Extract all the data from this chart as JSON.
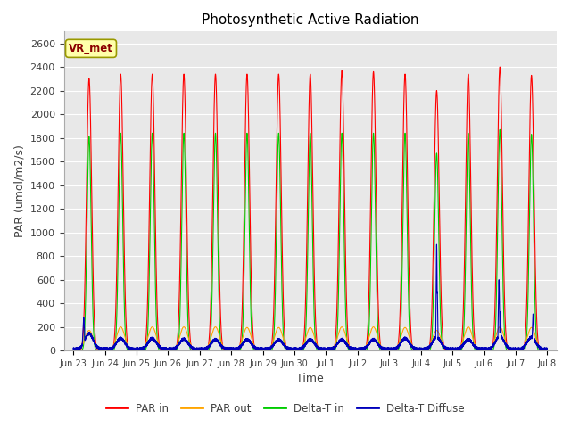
{
  "title": "Photosynthetic Active Radiation",
  "ylabel": "PAR (umol/m2/s)",
  "xlabel": "Time",
  "ylim": [
    0,
    2700
  ],
  "yticks": [
    0,
    200,
    400,
    600,
    800,
    1000,
    1200,
    1400,
    1600,
    1800,
    2000,
    2200,
    2400,
    2600
  ],
  "xtick_labels": [
    "Jun 23",
    "Jun 24",
    "Jun 25",
    "Jun 26",
    "Jun 27",
    "Jun 28",
    "Jun 29",
    "Jun 30",
    "Jul 1",
    "Jul 2",
    "Jul 3",
    "Jul 4",
    "Jul 5",
    "Jul 6",
    "Jul 7",
    "Jul 8"
  ],
  "watermark": "VR_met",
  "fig_bg_color": "#ffffff",
  "plot_bg_color": "#e8e8e8",
  "grid_color": "#ffffff",
  "colors": {
    "PAR_in": "#ff0000",
    "PAR_out": "#ffa500",
    "DeltaT_in": "#00cc00",
    "DeltaT_diffuse": "#0000bb"
  },
  "legend": [
    "PAR in",
    "PAR out",
    "Delta-T in",
    "Delta-T Diffuse"
  ],
  "PAR_in_peaks": [
    2300,
    2340,
    2340,
    2340,
    2340,
    2340,
    2340,
    2340,
    2370,
    2360,
    2340,
    2200,
    2340,
    2400,
    2330
  ],
  "PAR_out_peaks": [
    170,
    200,
    200,
    200,
    200,
    195,
    195,
    195,
    200,
    200,
    195,
    170,
    200,
    200,
    195
  ],
  "DeltaT_peaks": [
    1810,
    1840,
    1840,
    1840,
    1840,
    1840,
    1840,
    1840,
    1840,
    1840,
    1840,
    1670,
    1840,
    1870,
    1830
  ],
  "blue_base_peaks": [
    130,
    90,
    90,
    85,
    80,
    80,
    80,
    80,
    80,
    80,
    90,
    100,
    80,
    110,
    100
  ]
}
